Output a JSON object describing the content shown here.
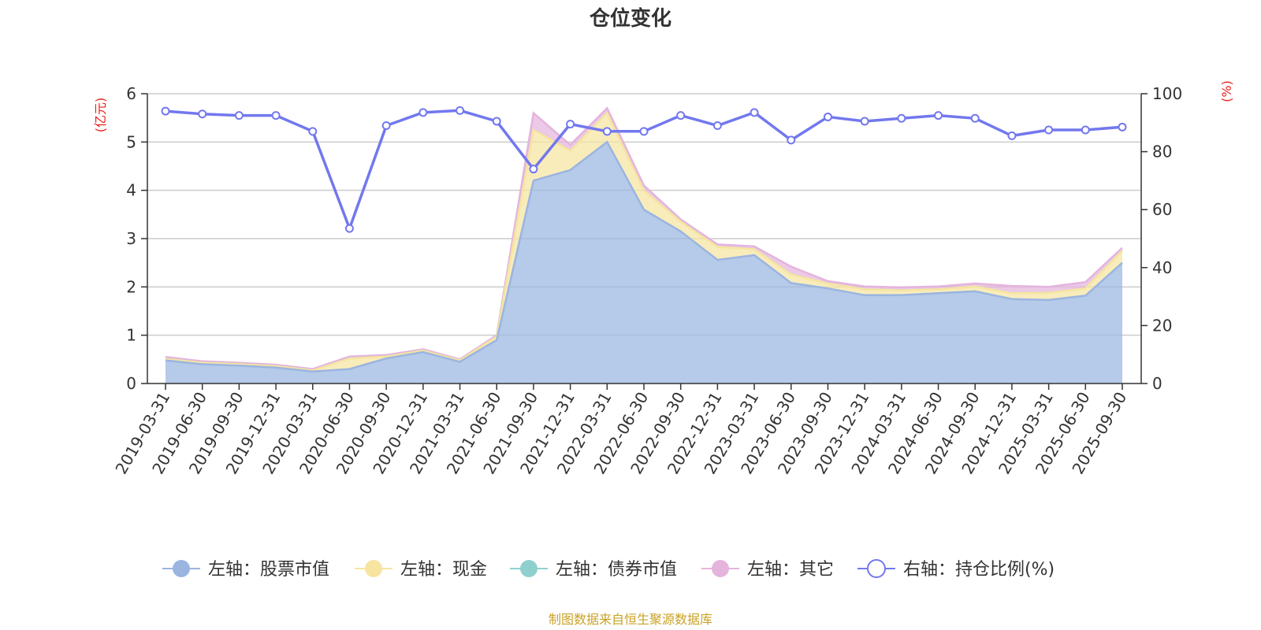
{
  "chart_data": {
    "type": "area",
    "title": "仓位变化",
    "source": "制图数据来自恒生聚源数据库",
    "left_axis": {
      "unit": "(亿元)",
      "ylim": [
        0,
        6
      ],
      "ticks": [
        "0",
        "1",
        "2",
        "3",
        "4",
        "5",
        "6"
      ]
    },
    "right_axis": {
      "unit": "(%)",
      "ylim": [
        0,
        100
      ],
      "ticks": [
        "0",
        "20",
        "40",
        "60",
        "80",
        "100"
      ]
    },
    "categories": [
      "2019-03-31",
      "2019-06-30",
      "2019-09-30",
      "2019-12-31",
      "2020-03-31",
      "2020-06-30",
      "2020-09-30",
      "2020-12-31",
      "2021-03-31",
      "2021-06-30",
      "2021-09-30",
      "2021-12-31",
      "2022-03-31",
      "2022-06-30",
      "2022-09-30",
      "2022-12-31",
      "2023-03-31",
      "2023-06-30",
      "2023-09-30",
      "2023-12-31",
      "2024-03-31",
      "2024-06-30",
      "2024-09-30",
      "2024-12-31",
      "2025-03-31",
      "2025-06-30",
      "2025-09-30"
    ],
    "series": [
      {
        "name": "左轴：股票市值",
        "axis": "left",
        "color": "#9ab5e0",
        "values": [
          0.48,
          0.4,
          0.37,
          0.33,
          0.25,
          0.3,
          0.52,
          0.65,
          0.45,
          0.9,
          4.2,
          4.42,
          5.0,
          3.6,
          3.15,
          2.56,
          2.66,
          2.08,
          1.97,
          1.83,
          1.83,
          1.87,
          1.91,
          1.75,
          1.73,
          1.82,
          2.5
        ]
      },
      {
        "name": "左轴：现金",
        "axis": "left",
        "color": "#f7e4a1",
        "values": [
          0.03,
          0.03,
          0.03,
          0.03,
          0.02,
          0.22,
          0.04,
          0.03,
          0.03,
          0.07,
          1.05,
          0.4,
          0.6,
          0.4,
          0.2,
          0.27,
          0.12,
          0.18,
          0.1,
          0.12,
          0.1,
          0.08,
          0.1,
          0.12,
          0.15,
          0.15,
          0.25
        ]
      },
      {
        "name": "左轴：债券市值",
        "axis": "left",
        "color": "#8fd0cf",
        "values": [
          0,
          0,
          0,
          0,
          0,
          0,
          0,
          0,
          0,
          0,
          0,
          0,
          0,
          0,
          0,
          0,
          0,
          0,
          0,
          0,
          0,
          0,
          0,
          0,
          0,
          0,
          0
        ]
      },
      {
        "name": "左轴：其它",
        "axis": "left",
        "color": "#e4b4dd",
        "values": [
          0.04,
          0.03,
          0.03,
          0.03,
          0.03,
          0.04,
          0.03,
          0.03,
          0.02,
          0.03,
          0.35,
          0.12,
          0.1,
          0.1,
          0.05,
          0.05,
          0.06,
          0.16,
          0.05,
          0.06,
          0.06,
          0.06,
          0.06,
          0.15,
          0.12,
          0.13,
          0.06
        ]
      },
      {
        "name": "右轴：持仓比例(%)",
        "axis": "right",
        "color": "#7278ee",
        "values": [
          94,
          93,
          92.5,
          92.5,
          87,
          53.5,
          89,
          93.5,
          94.2,
          90.5,
          74,
          89.5,
          87,
          87,
          92.5,
          89,
          93.5,
          84,
          92,
          90.5,
          91.5,
          92.5,
          91.5,
          85.5,
          87.5,
          87.5,
          88.5
        ]
      }
    ]
  }
}
